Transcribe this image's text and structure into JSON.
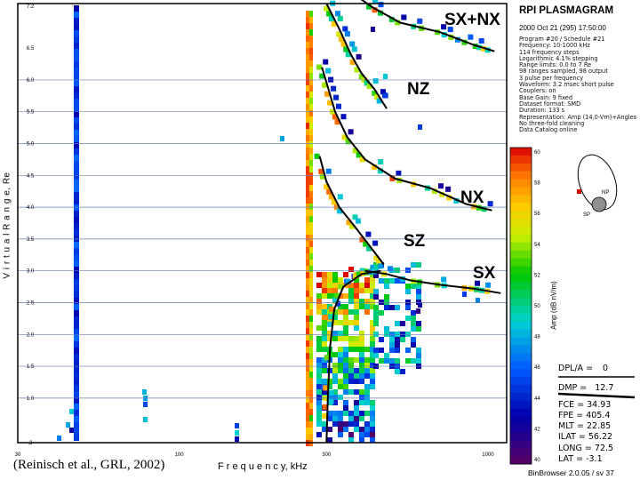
{
  "header": {
    "title": "RPI PLASMAGRAM",
    "datetime": "2000 Oct 21 (295) 17:50:00"
  },
  "program_info": [
    "Program #20 / Schedule #21",
    "Frequency: 10-1000 kHz",
    "114 frequency steps",
    "Logarithmic 4.1% stepping",
    "Range limits: 0.0 to 7 Re",
    "98 ranges sampled, 98 output",
    "3 pulse per frequency",
    "Waveform: 3.2 msec short pulse",
    "Couplers: on",
    "Base Gain: 9 fixed",
    "Dataset format: SMD",
    "Duration: 133 s",
    "Representation: Amp (14,0-Vm)+Angles",
    "No three-fold cleaning",
    "Data Catalog online"
  ],
  "chart_data": {
    "type": "heatmap",
    "title": "RPI PLASMAGRAM",
    "xlabel": "F r e q u e n c y,  kHz",
    "ylabel": "V i r t u a l   R a n g e,  Re",
    "x_scale": "log",
    "xlim": [
      30,
      1150
    ],
    "ylim": [
      0.3,
      7.2
    ],
    "x_tick_labels": [
      "30",
      "100",
      "300",
      "1000"
    ],
    "y_tick_labels": [
      "7.2",
      "6.5",
      "6.0",
      "5.5",
      "5.0",
      "4.5",
      "4.0",
      "3.5",
      "3.0",
      "2.5",
      "2.0",
      "1.5",
      "1.0",
      ".3"
    ],
    "grid": true,
    "traces": [
      {
        "label": "SX+NX",
        "points": [
          [
            380,
            7.3
          ],
          [
            420,
            7.15
          ],
          [
            520,
            6.9
          ],
          [
            700,
            6.75
          ],
          [
            900,
            6.55
          ],
          [
            1050,
            6.45
          ]
        ]
      },
      {
        "label": "NZ",
        "points": [
          [
            300,
            7.2
          ],
          [
            330,
            6.8
          ],
          [
            360,
            6.4
          ],
          [
            390,
            6.1
          ],
          [
            430,
            5.85
          ],
          [
            470,
            5.55
          ]
        ]
      },
      {
        "label": "NX",
        "points": [
          [
            290,
            6.2
          ],
          [
            320,
            5.5
          ],
          [
            350,
            5.1
          ],
          [
            400,
            4.75
          ],
          [
            500,
            4.45
          ],
          [
            650,
            4.3
          ],
          [
            850,
            4.05
          ],
          [
            1030,
            3.95
          ]
        ]
      },
      {
        "label": "SZ",
        "points": [
          [
            285,
            4.8
          ],
          [
            300,
            4.4
          ],
          [
            330,
            4.0
          ],
          [
            370,
            3.7
          ],
          [
            420,
            3.35
          ],
          [
            460,
            3.1
          ]
        ]
      },
      {
        "label": "SX",
        "points": [
          [
            400,
            3.0
          ],
          [
            470,
            2.95
          ],
          [
            560,
            2.85
          ],
          [
            700,
            2.78
          ],
          [
            900,
            2.72
          ],
          [
            1100,
            2.65
          ]
        ]
      },
      {
        "label": "",
        "points": [
          [
            300,
            0.3
          ],
          [
            303,
            1.0
          ],
          [
            308,
            1.8
          ],
          [
            318,
            2.4
          ],
          [
            340,
            2.75
          ],
          [
            390,
            2.95
          ],
          [
            450,
            3.0
          ]
        ]
      }
    ],
    "colorbar": {
      "label": "Amp (dB nV/m)",
      "min": 40,
      "max": 60,
      "ticks": [
        "60",
        "58",
        "56",
        "54",
        "52",
        "50",
        "48",
        "46",
        "44",
        "42",
        "40"
      ]
    },
    "readouts": [
      {
        "name": "DPL/A",
        "value": "0"
      },
      {
        "name": "DMP",
        "value": "12.7"
      },
      {
        "name": "FCE",
        "value": "34.93"
      },
      {
        "name": "FPE",
        "value": "405.4"
      },
      {
        "name": "MLT",
        "value": "22.85"
      },
      {
        "name": "ILAT",
        "value": "56.22"
      },
      {
        "name": "LONG",
        "value": "72.5"
      },
      {
        "name": "LAT",
        "value": "-3.1"
      }
    ]
  },
  "orbit": {
    "north_label": "NP",
    "south_label": "SP"
  },
  "footer": {
    "citation": "(Reinisch et al., GRL, 2002)",
    "version": "BinBrowser 2.0.05 / sv 37"
  },
  "colors": {
    "trace": "#000000",
    "grid": "#6a7fb3",
    "frame": "#000000"
  }
}
